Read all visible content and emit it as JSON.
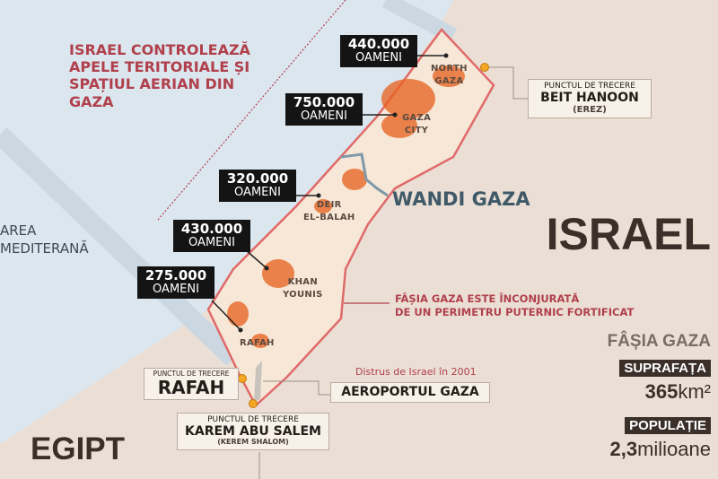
{
  "colors": {
    "sea": "#dce6ee",
    "land": "#ebdfd5",
    "strip": "#f6e7d6",
    "border": "#e06a6a",
    "density": "#e8601c",
    "wadi": "#7e98a8",
    "annotation": "#b0404c"
  },
  "sea_label": [
    "AREA",
    "MEDITERANĂ"
  ],
  "israel_control": [
    "ISRAEL CONTROLEAZĂ",
    "APELE TERITORIALE ȘI",
    "SPAȚIUL AERIAN DIN",
    "GAZA"
  ],
  "population": [
    {
      "value": "440.000",
      "unit": "OAMENI",
      "city": "NORTH GAZA"
    },
    {
      "value": "750.000",
      "unit": "OAMENI",
      "city": "GAZA CITY"
    },
    {
      "value": "320.000",
      "unit": "OAMENI",
      "city": "DEIR EL-BALAH"
    },
    {
      "value": "430.000",
      "unit": "OAMENI",
      "city": "KHAN YOUNIS"
    },
    {
      "value": "275.000",
      "unit": "OAMENI",
      "city": "RAFAH"
    }
  ],
  "cities": {
    "north_gaza": [
      "NORTH",
      "GAZA"
    ],
    "gaza_city": [
      "GAZA",
      "CITY"
    ],
    "deir": [
      "DEIR",
      "EL-BALAH"
    ],
    "khan": [
      "KHAN",
      "YOUNIS"
    ],
    "rafah": "RAFAH"
  },
  "wadi": "WANDI GAZA",
  "countries": {
    "israel": "ISRAEL",
    "egypt": "EGIPT"
  },
  "perimeter": [
    "FÂȘIA GAZA ESTE ÎNCONJURATĂ",
    "DE UN PERIMETRU PUTERNIC FORTIFICAT"
  ],
  "crossings": {
    "beit": {
      "pre": "PUNCTUL DE TRECERE",
      "name": "BEIT HANOON",
      "paren": "(EREZ)"
    },
    "rafah": {
      "pre": "PUNCTUL DE TRECERE",
      "name": "RAFAH"
    },
    "karem": {
      "pre": "PUNCTUL DE TRECERE",
      "name": "KAREM ABU SALEM",
      "paren": "(KEREM SHALOM)"
    }
  },
  "airport": {
    "note": "Distrus de Israel în 2001",
    "name": "AEROPORTUL GAZA"
  },
  "stats": {
    "title": "FÂȘIA GAZA",
    "area_label": "SUPRAFAȚA",
    "area_value": "365",
    "area_unit": "km²",
    "pop_label": "POPULAȚIE",
    "pop_value": "2,3",
    "pop_unit": "milioane"
  }
}
